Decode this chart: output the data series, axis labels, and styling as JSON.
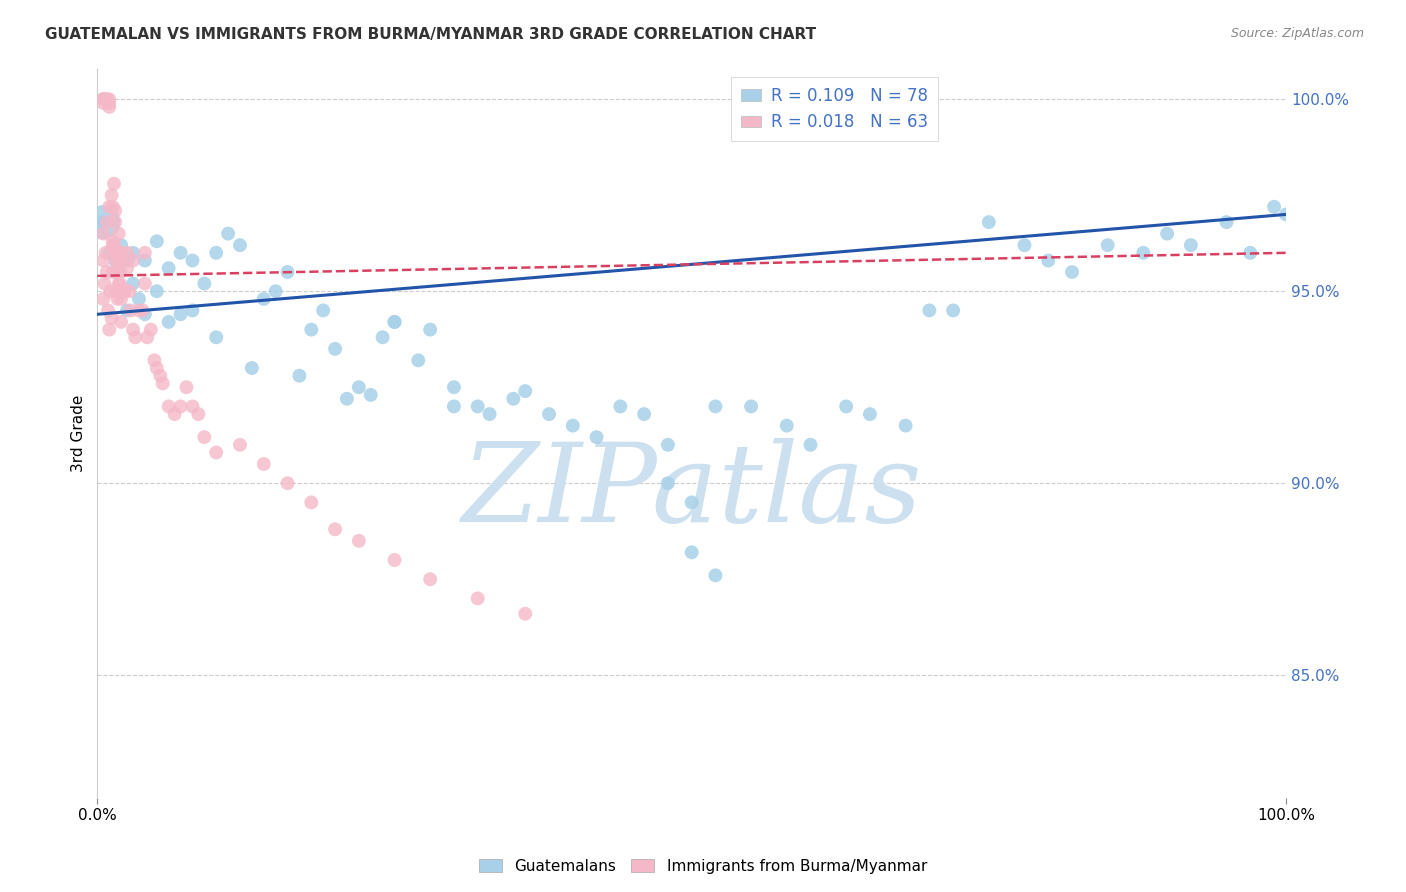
{
  "title": "GUATEMALAN VS IMMIGRANTS FROM BURMA/MYANMAR 3RD GRADE CORRELATION CHART",
  "source": "Source: ZipAtlas.com",
  "ylabel": "3rd Grade",
  "xlim": [
    0.0,
    1.0
  ],
  "ylim": [
    0.818,
    1.008
  ],
  "y_ticks": [
    0.85,
    0.9,
    0.95,
    1.0
  ],
  "y_tick_labels": [
    "85.0%",
    "90.0%",
    "95.0%",
    "100.0%"
  ],
  "x_ticks": [
    0.0,
    1.0
  ],
  "x_tick_labels": [
    "0.0%",
    "100.0%"
  ],
  "legend1_label": "Guatemalans",
  "legend2_label": "Immigrants from Burma/Myanmar",
  "legend_blue_label": "R = 0.109   N = 78",
  "legend_pink_label": "R = 0.018   N = 63",
  "blue_color": "#a8d0e8",
  "pink_color": "#f5b8c8",
  "blue_line_color": "#2255aa",
  "pink_line_color": "#d94060",
  "blue_line_start_y": 0.944,
  "blue_line_end_y": 0.97,
  "pink_line_start_y": 0.954,
  "pink_line_end_y": 0.96,
  "grid_color": "#cccccc",
  "background_color": "#ffffff",
  "watermark_color": "#cce0f0",
  "blue_scatter_x": [
    0.005,
    0.01,
    0.015,
    0.02,
    0.02,
    0.025,
    0.025,
    0.03,
    0.03,
    0.035,
    0.04,
    0.04,
    0.05,
    0.05,
    0.06,
    0.06,
    0.07,
    0.07,
    0.08,
    0.08,
    0.09,
    0.1,
    0.1,
    0.11,
    0.12,
    0.13,
    0.14,
    0.15,
    0.16,
    0.17,
    0.18,
    0.19,
    0.2,
    0.21,
    0.22,
    0.23,
    0.24,
    0.25,
    0.27,
    0.28,
    0.3,
    0.32,
    0.33,
    0.35,
    0.36,
    0.38,
    0.4,
    0.42,
    0.44,
    0.46,
    0.48,
    0.5,
    0.52,
    0.55,
    0.58,
    0.6,
    0.63,
    0.65,
    0.68,
    0.7,
    0.72,
    0.75,
    0.78,
    0.8,
    0.82,
    0.85,
    0.88,
    0.9,
    0.92,
    0.95,
    0.97,
    0.99,
    1.0,
    0.5,
    0.52,
    0.48,
    0.3,
    0.25
  ],
  "blue_scatter_y": [
    0.968,
    0.96,
    0.958,
    0.95,
    0.962,
    0.945,
    0.958,
    0.952,
    0.96,
    0.948,
    0.944,
    0.958,
    0.95,
    0.963,
    0.942,
    0.956,
    0.944,
    0.96,
    0.945,
    0.958,
    0.952,
    0.938,
    0.96,
    0.965,
    0.962,
    0.93,
    0.948,
    0.95,
    0.955,
    0.928,
    0.94,
    0.945,
    0.935,
    0.922,
    0.925,
    0.923,
    0.938,
    0.942,
    0.932,
    0.94,
    0.925,
    0.92,
    0.918,
    0.922,
    0.924,
    0.918,
    0.915,
    0.912,
    0.92,
    0.918,
    0.91,
    0.882,
    0.92,
    0.92,
    0.915,
    0.91,
    0.92,
    0.918,
    0.915,
    0.945,
    0.945,
    0.968,
    0.962,
    0.958,
    0.955,
    0.962,
    0.96,
    0.965,
    0.962,
    0.968,
    0.96,
    0.972,
    0.97,
    0.895,
    0.876,
    0.9,
    0.92,
    0.942
  ],
  "blue_large_x": [
    0.005
  ],
  "blue_large_y": [
    0.968
  ],
  "pink_scatter_x": [
    0.005,
    0.005,
    0.005,
    0.005,
    0.007,
    0.008,
    0.01,
    0.01,
    0.01,
    0.012,
    0.013,
    0.013,
    0.014,
    0.015,
    0.015,
    0.015,
    0.016,
    0.017,
    0.018,
    0.018,
    0.018,
    0.019,
    0.02,
    0.02,
    0.02,
    0.022,
    0.022,
    0.023,
    0.025,
    0.025,
    0.027,
    0.028,
    0.03,
    0.03,
    0.032,
    0.035,
    0.038,
    0.04,
    0.04,
    0.042,
    0.045,
    0.048,
    0.05,
    0.053,
    0.055,
    0.06,
    0.065,
    0.07,
    0.075,
    0.08,
    0.085,
    0.09,
    0.1,
    0.12,
    0.14,
    0.16,
    0.18,
    0.2,
    0.22,
    0.25,
    0.28,
    0.32,
    0.36
  ],
  "pink_scatter_y": [
    1.0,
    1.0,
    1.0,
    0.999,
    1.0,
    1.0,
    0.999,
    0.998,
    1.0,
    0.975,
    0.963,
    0.972,
    0.978,
    0.968,
    0.96,
    0.971,
    0.96,
    0.955,
    0.958,
    0.952,
    0.965,
    0.952,
    0.948,
    0.96,
    0.942,
    0.958,
    0.95,
    0.95,
    0.956,
    0.96,
    0.95,
    0.945,
    0.94,
    0.958,
    0.938,
    0.945,
    0.945,
    0.952,
    0.96,
    0.938,
    0.94,
    0.932,
    0.93,
    0.928,
    0.926,
    0.92,
    0.918,
    0.92,
    0.925,
    0.92,
    0.918,
    0.912,
    0.908,
    0.91,
    0.905,
    0.9,
    0.895,
    0.888,
    0.885,
    0.88,
    0.875,
    0.87,
    0.866
  ],
  "pink_large_x": [
    0.005,
    0.005,
    0.005,
    0.006,
    0.007,
    0.008,
    0.009,
    0.01,
    0.011,
    0.012,
    0.013,
    0.014,
    0.015,
    0.016,
    0.017,
    0.018,
    0.019,
    0.02,
    0.008,
    0.01,
    0.013
  ],
  "pink_large_y": [
    0.958,
    0.948,
    0.965,
    0.952,
    0.96,
    0.955,
    0.945,
    0.94,
    0.95,
    0.943,
    0.955,
    0.962,
    0.95,
    0.958,
    0.948,
    0.96,
    0.955,
    0.95,
    0.968,
    0.972,
    0.962
  ]
}
